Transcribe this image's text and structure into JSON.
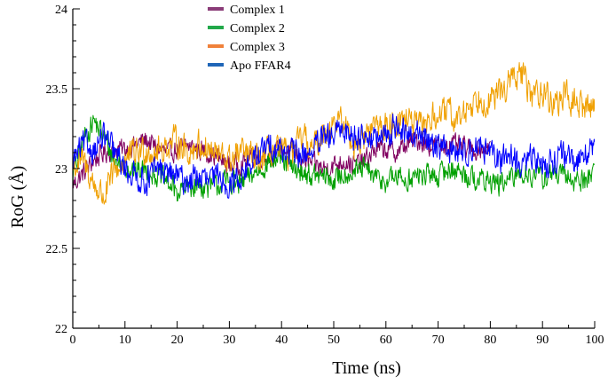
{
  "chart_data": {
    "type": "line",
    "title": "",
    "xlabel": "Time (ns)",
    "ylabel": "RoG (Å)",
    "xlim": [
      0,
      100
    ],
    "ylim": [
      22,
      24
    ],
    "x_ticks": [
      "0",
      "10",
      "20",
      "30",
      "40",
      "50",
      "60",
      "70",
      "80",
      "90",
      "100"
    ],
    "y_ticks": [
      "22",
      "22.5",
      "23",
      "23.5",
      "24"
    ],
    "grid": false,
    "legend_position": "top-center",
    "x_end": {
      "Complex 1": 80,
      "Complex 2": 100,
      "Complex 3": 100,
      "Apo FFAR4": 100
    },
    "series": [
      {
        "name": "Complex 1",
        "color": "#800060",
        "x": [
          0,
          2,
          4,
          6,
          8,
          10,
          12,
          14,
          16,
          18,
          20,
          22,
          24,
          26,
          28,
          30,
          32,
          34,
          36,
          38,
          40,
          42,
          44,
          46,
          48,
          50,
          52,
          54,
          56,
          58,
          60,
          62,
          64,
          66,
          68,
          70,
          72,
          74,
          76,
          78,
          80
        ],
        "values": [
          22.9,
          22.97,
          23.05,
          23.1,
          23.12,
          23.12,
          23.15,
          23.18,
          23.13,
          23.1,
          23.12,
          23.14,
          23.12,
          23.1,
          23.06,
          23.02,
          23.03,
          23.06,
          23.08,
          23.08,
          23.12,
          23.1,
          23.06,
          23.03,
          23.0,
          23.02,
          23.05,
          23.02,
          23.05,
          23.12,
          23.12,
          23.1,
          23.15,
          23.18,
          23.15,
          23.14,
          23.15,
          23.14,
          23.12,
          23.12,
          23.14
        ]
      },
      {
        "name": "Complex 2",
        "color": "#00a000",
        "x": [
          0,
          2,
          4,
          6,
          8,
          10,
          12,
          14,
          16,
          18,
          20,
          22,
          24,
          26,
          28,
          30,
          32,
          34,
          36,
          38,
          40,
          42,
          44,
          46,
          48,
          50,
          52,
          54,
          56,
          58,
          60,
          62,
          64,
          66,
          68,
          70,
          72,
          74,
          76,
          78,
          80,
          82,
          84,
          86,
          88,
          90,
          92,
          94,
          96,
          98,
          100
        ],
        "values": [
          22.95,
          23.18,
          23.3,
          23.2,
          23.05,
          23.02,
          22.98,
          23.0,
          22.96,
          22.92,
          22.85,
          22.88,
          22.9,
          22.88,
          22.9,
          22.92,
          22.9,
          22.95,
          23.0,
          23.05,
          23.05,
          23.0,
          22.98,
          22.95,
          22.95,
          22.92,
          22.97,
          22.98,
          23.0,
          22.94,
          22.92,
          22.95,
          22.93,
          22.95,
          22.96,
          22.95,
          23.0,
          22.98,
          22.95,
          22.93,
          22.92,
          22.9,
          22.93,
          22.98,
          22.96,
          22.94,
          22.97,
          22.95,
          22.93,
          22.92,
          23.0
        ]
      },
      {
        "name": "Complex 3",
        "color": "#f0a000",
        "x": [
          0,
          2,
          4,
          6,
          8,
          10,
          12,
          14,
          16,
          18,
          20,
          22,
          24,
          26,
          28,
          30,
          32,
          34,
          36,
          38,
          40,
          42,
          44,
          46,
          48,
          50,
          52,
          54,
          56,
          58,
          60,
          62,
          64,
          66,
          68,
          70,
          72,
          74,
          76,
          78,
          80,
          82,
          84,
          86,
          88,
          90,
          92,
          94,
          96,
          98,
          100
        ],
        "values": [
          23.0,
          23.05,
          22.9,
          22.82,
          22.98,
          23.05,
          23.1,
          23.12,
          23.1,
          23.14,
          23.18,
          23.1,
          23.15,
          23.12,
          23.08,
          23.05,
          23.1,
          23.08,
          23.05,
          23.12,
          23.1,
          23.08,
          23.2,
          23.12,
          23.22,
          23.3,
          23.28,
          23.15,
          23.2,
          23.28,
          23.25,
          23.3,
          23.32,
          23.25,
          23.3,
          23.33,
          23.35,
          23.3,
          23.4,
          23.45,
          23.42,
          23.48,
          23.55,
          23.6,
          23.45,
          23.5,
          23.4,
          23.45,
          23.42,
          23.38,
          23.4
        ]
      },
      {
        "name": "Apo FFAR4",
        "color": "#0000ff",
        "x": [
          0,
          2,
          4,
          6,
          8,
          10,
          12,
          14,
          16,
          18,
          20,
          22,
          24,
          26,
          28,
          30,
          32,
          34,
          36,
          38,
          40,
          42,
          44,
          46,
          48,
          50,
          52,
          54,
          56,
          58,
          60,
          62,
          64,
          66,
          68,
          70,
          72,
          74,
          76,
          78,
          80,
          82,
          84,
          86,
          88,
          90,
          92,
          94,
          96,
          98,
          100
        ],
        "values": [
          23.05,
          23.15,
          23.12,
          23.2,
          23.1,
          23.0,
          22.95,
          22.92,
          23.0,
          22.98,
          22.95,
          22.92,
          22.95,
          22.92,
          22.95,
          22.9,
          22.95,
          23.02,
          23.1,
          23.15,
          23.12,
          23.1,
          23.08,
          23.12,
          23.18,
          23.2,
          23.25,
          23.2,
          23.22,
          23.18,
          23.2,
          23.28,
          23.2,
          23.22,
          23.18,
          23.15,
          23.12,
          23.1,
          23.12,
          23.15,
          23.08,
          23.05,
          23.1,
          23.0,
          23.08,
          23.02,
          23.05,
          23.1,
          23.0,
          23.12,
          23.1
        ]
      }
    ]
  }
}
